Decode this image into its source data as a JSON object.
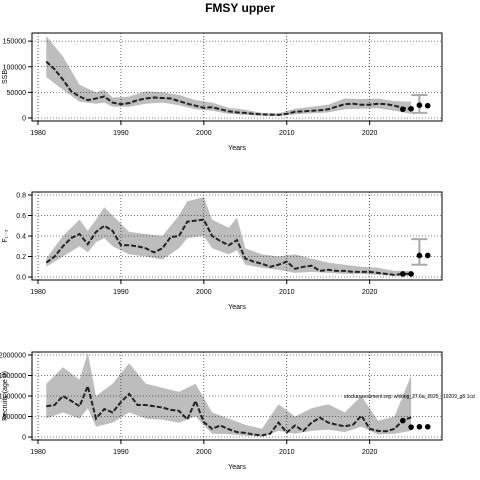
{
  "page": {
    "title": "FMSY upper"
  },
  "chart_data": [
    {
      "type": "line",
      "title": "FMSY upper",
      "xlabel": "Years",
      "ylabel": "SSB",
      "xlim": [
        1980,
        2028
      ],
      "ylim": [
        0,
        160000
      ],
      "xticks": [
        1980,
        1990,
        2000,
        2010,
        2020
      ],
      "yticks": [
        0,
        50000,
        100000,
        150000
      ],
      "grid": true,
      "series": [
        {
          "role": "median",
          "x": [
            1981,
            1982,
            1983,
            1984,
            1985,
            1986,
            1987,
            1988,
            1989,
            1990,
            1991,
            1992,
            1993,
            1994,
            1995,
            1996,
            1997,
            1998,
            1999,
            2000,
            2001,
            2002,
            2003,
            2004,
            2005,
            2006,
            2007,
            2008,
            2009,
            2010,
            2011,
            2012,
            2013,
            2014,
            2015,
            2016,
            2017,
            2018,
            2019,
            2020,
            2021,
            2022,
            2023,
            2024,
            2025
          ],
          "y": [
            110000,
            95000,
            75000,
            52000,
            42000,
            35000,
            38000,
            42000,
            30000,
            27000,
            29000,
            35000,
            38000,
            40000,
            39000,
            38000,
            33000,
            28000,
            24000,
            20000,
            21000,
            17000,
            13000,
            11000,
            10000,
            8000,
            7000,
            6500,
            6000,
            8000,
            12000,
            13000,
            14000,
            15000,
            17000,
            22000,
            27000,
            28000,
            26000,
            26000,
            28000,
            27000,
            24000,
            20000,
            17000
          ]
        },
        {
          "role": "band",
          "x": [
            1981,
            1983,
            1985,
            1987,
            1988,
            1989,
            1991,
            1993,
            1995,
            1997,
            1999,
            2001,
            2003,
            2005,
            2007,
            2009,
            2011,
            2013,
            2015,
            2017,
            2019,
            2021,
            2023,
            2025
          ],
          "lower": [
            80000,
            55000,
            32000,
            28000,
            30000,
            22000,
            22000,
            28000,
            30000,
            25000,
            17000,
            14000,
            8000,
            6000,
            4500,
            4000,
            7000,
            9000,
            11000,
            17000,
            18000,
            19000,
            14000,
            8000
          ],
          "upper": [
            160000,
            120000,
            65000,
            50000,
            55000,
            40000,
            42000,
            52000,
            50000,
            45000,
            35000,
            30000,
            20000,
            16000,
            10000,
            9000,
            18000,
            22000,
            26000,
            38000,
            37000,
            38000,
            33000,
            32000
          ]
        },
        {
          "role": "projection",
          "x": [
            2024,
            2025,
            2026,
            2027
          ],
          "y": [
            17000,
            18000,
            25000,
            24000
          ]
        }
      ],
      "error_bars": [
        {
          "x": 2026,
          "low": 10000,
          "high": 45000
        }
      ]
    },
    {
      "type": "line",
      "xlabel": "Years",
      "ylabel": "F₁₋₃",
      "xlim": [
        1980,
        2028
      ],
      "ylim": [
        0,
        0.8
      ],
      "xticks": [
        1980,
        1990,
        2000,
        2010,
        2020
      ],
      "yticks": [
        0.0,
        0.2,
        0.4,
        0.6,
        0.8
      ],
      "grid": true,
      "series": [
        {
          "role": "median",
          "x": [
            1981,
            1982,
            1983,
            1984,
            1985,
            1986,
            1987,
            1988,
            1989,
            1990,
            1991,
            1992,
            1993,
            1994,
            1995,
            1996,
            1997,
            1998,
            1999,
            2000,
            2001,
            2002,
            2003,
            2004,
            2005,
            2006,
            2007,
            2008,
            2009,
            2010,
            2011,
            2012,
            2013,
            2014,
            2015,
            2016,
            2017,
            2018,
            2019,
            2020,
            2021,
            2022,
            2023,
            2024,
            2025
          ],
          "y": [
            0.14,
            0.2,
            0.3,
            0.38,
            0.42,
            0.32,
            0.44,
            0.5,
            0.45,
            0.31,
            0.31,
            0.3,
            0.28,
            0.24,
            0.28,
            0.39,
            0.4,
            0.54,
            0.55,
            0.56,
            0.4,
            0.35,
            0.31,
            0.36,
            0.18,
            0.15,
            0.13,
            0.1,
            0.12,
            0.15,
            0.08,
            0.1,
            0.11,
            0.06,
            0.07,
            0.06,
            0.06,
            0.05,
            0.05,
            0.05,
            0.04,
            0.03,
            0.02,
            0.03,
            0.03
          ]
        },
        {
          "role": "band",
          "x": [
            1981,
            1983,
            1985,
            1986,
            1987,
            1988,
            1989,
            1991,
            1993,
            1995,
            1997,
            1998,
            2000,
            2001,
            2003,
            2004,
            2005,
            2007,
            2009,
            2011,
            2013,
            2015,
            2017,
            2019,
            2021,
            2023,
            2025
          ],
          "lower": [
            0.1,
            0.2,
            0.3,
            0.24,
            0.34,
            0.38,
            0.3,
            0.22,
            0.2,
            0.17,
            0.28,
            0.38,
            0.4,
            0.28,
            0.22,
            0.26,
            0.12,
            0.09,
            0.07,
            0.04,
            0.05,
            0.04,
            0.03,
            0.03,
            0.02,
            0.01,
            0.01
          ],
          "upper": [
            0.18,
            0.4,
            0.56,
            0.45,
            0.56,
            0.68,
            0.6,
            0.44,
            0.42,
            0.4,
            0.6,
            0.74,
            0.78,
            0.56,
            0.48,
            0.58,
            0.28,
            0.22,
            0.2,
            0.22,
            0.18,
            0.14,
            0.12,
            0.1,
            0.09,
            0.06,
            0.06
          ]
        },
        {
          "role": "projection",
          "x": [
            2024,
            2025,
            2026,
            2027
          ],
          "y": [
            0.03,
            0.03,
            0.21,
            0.21
          ]
        }
      ],
      "error_bars": [
        {
          "x": 2026,
          "low": 0.12,
          "high": 0.37
        }
      ]
    },
    {
      "type": "line",
      "xlabel": "Years",
      "ylabel": "Recruits (age 0)",
      "xlim": [
        1980,
        2028
      ],
      "ylim": [
        0,
        2000000
      ],
      "xticks": [
        1980,
        1990,
        2000,
        2010,
        2020
      ],
      "yticks": [
        0,
        500000,
        1000000,
        1500000,
        2000000
      ],
      "ytick_labels": [
        "0",
        "500000",
        "1000000",
        "1500000",
        "2000000"
      ],
      "grid": true,
      "annotation": "stockassessment.org: whiting_27.6a_2025_r19209_g8.1cd",
      "series": [
        {
          "role": "median",
          "x": [
            1981,
            1982,
            1983,
            1984,
            1985,
            1986,
            1987,
            1988,
            1989,
            1990,
            1991,
            1992,
            1993,
            1994,
            1995,
            1996,
            1997,
            1998,
            1999,
            2000,
            2001,
            2002,
            2003,
            2004,
            2005,
            2006,
            2007,
            2008,
            2009,
            2010,
            2011,
            2012,
            2013,
            2014,
            2015,
            2016,
            2017,
            2018,
            2019,
            2020,
            2021,
            2022,
            2023,
            2024,
            2025
          ],
          "y": [
            750000,
            780000,
            1000000,
            880000,
            750000,
            1240000,
            450000,
            680000,
            600000,
            850000,
            1050000,
            780000,
            780000,
            750000,
            720000,
            660000,
            640000,
            430000,
            880000,
            360000,
            200000,
            280000,
            190000,
            120000,
            100000,
            60000,
            40000,
            80000,
            350000,
            110000,
            280000,
            150000,
            350000,
            470000,
            350000,
            300000,
            260000,
            300000,
            520000,
            200000,
            150000,
            140000,
            200000,
            400000,
            480000
          ]
        },
        {
          "role": "band",
          "x": [
            1981,
            1983,
            1985,
            1986,
            1987,
            1989,
            1991,
            1993,
            1995,
            1997,
            1999,
            2001,
            2003,
            2005,
            2007,
            2009,
            2011,
            2013,
            2015,
            2017,
            2019,
            2021,
            2023,
            2025
          ],
          "lower": [
            450000,
            600000,
            450000,
            700000,
            250000,
            350000,
            600000,
            450000,
            420000,
            350000,
            500000,
            80000,
            70000,
            30000,
            10000,
            150000,
            80000,
            150000,
            180000,
            120000,
            250000,
            60000,
            80000,
            150000
          ],
          "upper": [
            1300000,
            1700000,
            1400000,
            2050000,
            1000000,
            1300000,
            1800000,
            1300000,
            1200000,
            1100000,
            1300000,
            600000,
            450000,
            300000,
            200000,
            800000,
            500000,
            700000,
            800000,
            600000,
            1000000,
            400000,
            500000,
            1500000
          ]
        },
        {
          "role": "projection",
          "x": [
            2024,
            2025,
            2026,
            2027
          ],
          "y": [
            400000,
            240000,
            250000,
            250000
          ]
        }
      ],
      "error_bars": []
    }
  ]
}
